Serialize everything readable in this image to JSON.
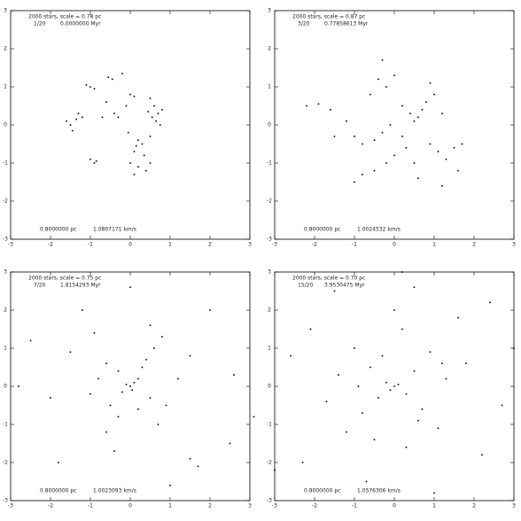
{
  "chart_data": [
    {
      "type": "scatter",
      "title": "2000 stars, scale = 0.78 pc",
      "frame": "1/20",
      "time": "0.0000000 Myr",
      "length_scale": "0.8000000 pc",
      "velocity": "1.0807171 km/s",
      "x": [
        -1.0,
        -0.9,
        -1.1,
        -0.55,
        -0.45,
        -0.2,
        -1.3,
        -1.2,
        -1.35,
        -1.6,
        -1.5,
        -1.45,
        -0.9,
        -0.85,
        -1.0,
        -0.4,
        -0.3,
        -0.1,
        0.0,
        0.1,
        0.5,
        0.6,
        0.7,
        0.55,
        0.8,
        0.65,
        0.45,
        0.75,
        0.2,
        0.15,
        0.3,
        0.1,
        0.35,
        0.0,
        0.2,
        0.4,
        0.1,
        0.5,
        -0.05,
        0.5,
        -0.7,
        -0.6
      ],
      "y": [
        1.0,
        0.95,
        1.05,
        1.25,
        1.2,
        1.35,
        0.3,
        0.2,
        0.15,
        0.1,
        0.0,
        -0.15,
        -1.0,
        -0.95,
        -0.9,
        0.3,
        0.2,
        0.5,
        0.8,
        0.75,
        0.7,
        0.5,
        0.3,
        0.2,
        0.4,
        0.1,
        0.35,
        0.0,
        -0.4,
        -0.55,
        -0.5,
        -0.7,
        -0.8,
        -1.0,
        -1.1,
        -1.2,
        -1.3,
        -1.0,
        -0.2,
        -0.3,
        0.2,
        0.6
      ],
      "color": "#000000",
      "xlim": [
        -3,
        3
      ],
      "ylim": [
        -3,
        3
      ],
      "xticks": [
        -3,
        -2,
        -1,
        0,
        1,
        2,
        3
      ],
      "yticks": [
        -3,
        -2,
        -1,
        0,
        1,
        2,
        3
      ]
    },
    {
      "type": "scatter",
      "title": "2000 stars, scale = 0.87 pc",
      "frame": "3/20",
      "time": "0.77858613 Myr",
      "length_scale": "0.8000000 pc",
      "velocity": "1.0024532 km/s",
      "x": [
        -2.2,
        -1.9,
        -1.6,
        -1.2,
        -1.0,
        -0.8,
        -0.5,
        -0.3,
        -0.6,
        -0.4,
        -0.2,
        0.0,
        -0.3,
        0.2,
        0.4,
        0.6,
        0.7,
        0.5,
        0.8,
        1.0,
        1.2,
        0.9,
        1.1,
        1.3,
        1.6,
        1.5,
        0.3,
        0.0,
        -0.2,
        -0.5,
        -1.0,
        -0.8,
        0.5,
        1.2,
        -0.1,
        0.2,
        -1.5,
        1.7,
        0.6,
        0.9
      ],
      "y": [
        0.5,
        0.55,
        0.4,
        0.1,
        -0.3,
        -0.5,
        -0.4,
        -0.2,
        0.8,
        1.2,
        1.0,
        1.3,
        1.7,
        0.5,
        0.3,
        0.2,
        0.4,
        0.1,
        0.6,
        0.8,
        0.3,
        -0.5,
        -0.7,
        -0.9,
        -1.2,
        -0.6,
        -0.6,
        -0.8,
        -1.0,
        -1.2,
        -1.5,
        -1.3,
        -1.0,
        -1.6,
        0.0,
        -0.3,
        -0.3,
        -0.5,
        -1.4,
        1.1
      ],
      "color": "#000000",
      "xlim": [
        -3,
        3
      ],
      "ylim": [
        -3,
        3
      ],
      "xticks": [
        -3,
        -2,
        -1,
        0,
        1,
        2,
        3
      ],
      "yticks": [
        -3,
        -2,
        -1,
        0,
        1,
        2,
        3
      ]
    },
    {
      "type": "scatter",
      "title": "2000 stars, scale = 0.75 pc",
      "frame": "7/20",
      "time": "1.8154293 Myr",
      "length_scale": "0.8000000 pc",
      "velocity": "1.0023093 km/s",
      "x": [
        0,
        0.1,
        -0.1,
        0.05,
        0.2,
        -0.2,
        0.3,
        0.4,
        0.6,
        0.8,
        0.5,
        -0.3,
        -0.6,
        -0.8,
        -1.0,
        -0.5,
        -0.3,
        -0.6,
        -0.4,
        0.2,
        0.5,
        0.9,
        1.2,
        1.5,
        -1.5,
        -2.0,
        -2.5,
        2.0,
        2.5,
        1.5,
        1.7,
        -2.8,
        -1.8,
        0.0,
        1.0,
        2.6,
        -1.2,
        0.7,
        -0.9,
        3.1
      ],
      "y": [
        0,
        0.1,
        0.05,
        -0.1,
        0.2,
        -0.15,
        0.5,
        0.7,
        1.0,
        1.3,
        1.6,
        0.4,
        0.6,
        0.2,
        -0.2,
        -0.5,
        -0.8,
        -1.2,
        -1.7,
        -0.6,
        -0.3,
        -0.5,
        0.2,
        0.8,
        0.9,
        -0.3,
        1.2,
        2.0,
        -1.5,
        -1.9,
        -2.1,
        0.0,
        -2.0,
        2.6,
        -2.6,
        0.3,
        2.0,
        -1.0,
        1.4,
        -0.8
      ],
      "color": "#000000",
      "xlim": [
        -3,
        3
      ],
      "ylim": [
        -3,
        3
      ],
      "xticks": [
        -3,
        -2,
        -1,
        0,
        1,
        2,
        3
      ],
      "yticks": [
        -3,
        -2,
        -1,
        0,
        1,
        2,
        3
      ]
    },
    {
      "type": "scatter",
      "title": "2000 stars, scale = 0.70 pc",
      "frame": "15/20",
      "time": "3.9530475 Myr",
      "length_scale": "0.8000000 pc",
      "velocity": "1.0576306 km/s",
      "x": [
        0,
        -0.1,
        0.1,
        -0.2,
        0.3,
        -0.4,
        0.5,
        -0.6,
        0.7,
        -0.8,
        0.9,
        -1.0,
        1.1,
        -1.2,
        1.3,
        -1.4,
        0.2,
        0.3,
        -1.7,
        1.8,
        0.0,
        -2.1,
        2.2,
        -2.3,
        2.4,
        -2.6,
        2.7,
        0.5,
        -0.7,
        1.0,
        -3.0,
        3.0,
        0.2,
        -1.5,
        1.6,
        -0.3,
        0.6,
        -0.9,
        1.2,
        -0.5
      ],
      "y": [
        0,
        -0.1,
        0.05,
        0.1,
        -0.2,
        -0.3,
        0.4,
        0.5,
        -0.6,
        -0.7,
        0.9,
        1.0,
        -1.1,
        -1.2,
        0.2,
        0.3,
        1.5,
        -1.6,
        -0.4,
        0.6,
        2.0,
        1.5,
        -1.8,
        -2.0,
        2.2,
        0.8,
        -0.5,
        2.6,
        -2.5,
        -2.8,
        -2.2,
        1.0,
        3.0,
        2.5,
        1.8,
        0.8,
        -0.9,
        0.0,
        0.6,
        -1.4
      ],
      "color": "#000000",
      "xlim": [
        -3,
        3
      ],
      "ylim": [
        -3,
        3
      ],
      "xticks": [
        -3,
        -2,
        -1,
        0,
        1,
        2,
        3
      ],
      "yticks": [
        -3,
        -2,
        -1,
        0,
        1,
        2,
        3
      ]
    }
  ]
}
